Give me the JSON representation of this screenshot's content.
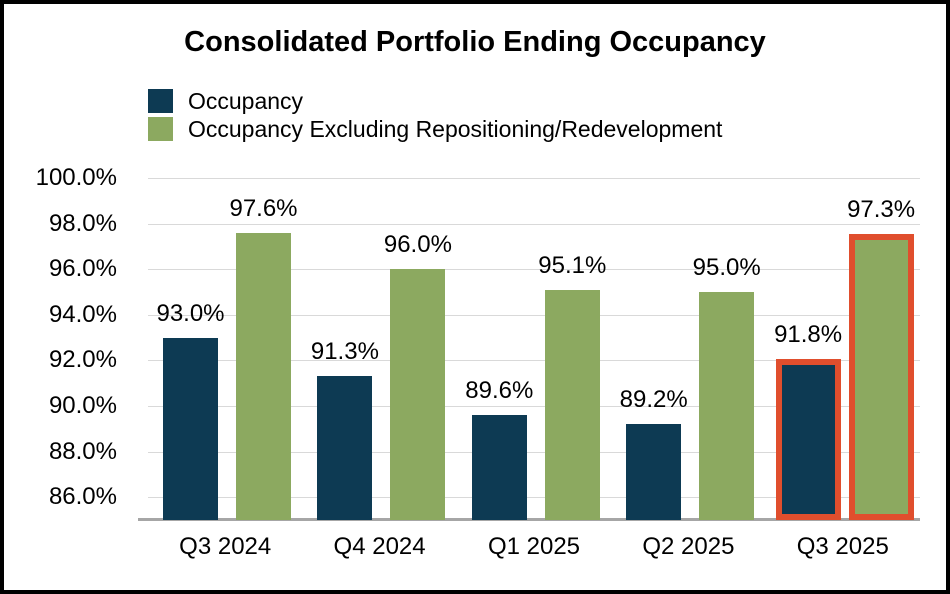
{
  "title": "Consolidated Portfolio Ending Occupancy",
  "legend": {
    "items": [
      {
        "label": "Occupancy",
        "color": "#0d3a53"
      },
      {
        "label": "Occupancy Excluding Repositioning/Redevelopment",
        "color": "#8ca960"
      }
    ]
  },
  "chart_data": {
    "type": "bar",
    "title": "Consolidated Portfolio Ending Occupancy",
    "categories": [
      "Q3 2024",
      "Q4 2024",
      "Q1 2025",
      "Q2 2025",
      "Q3 2025"
    ],
    "series": [
      {
        "name": "Occupancy",
        "color": "#0d3a53",
        "values": [
          93.0,
          91.3,
          89.6,
          89.2,
          91.8
        ],
        "labels": [
          "93.0%",
          "91.3%",
          "89.6%",
          "89.2%",
          "91.8%"
        ]
      },
      {
        "name": "Occupancy Excluding Repositioning/Redevelopment",
        "color": "#8ca960",
        "values": [
          97.6,
          96.0,
          95.1,
          95.0,
          97.3
        ],
        "labels": [
          "97.6%",
          "96.0%",
          "95.1%",
          "95.0%",
          "97.3%"
        ]
      }
    ],
    "y_axis": {
      "min": 85,
      "max": 100,
      "ticks": [
        {
          "value": 100,
          "label": "100.0%"
        },
        {
          "value": 98,
          "label": "98.0%"
        },
        {
          "value": 96,
          "label": "96.0%"
        },
        {
          "value": 94,
          "label": "94.0%"
        },
        {
          "value": 92,
          "label": "92.0%"
        },
        {
          "value": 90,
          "label": "90.0%"
        },
        {
          "value": 88,
          "label": "88.0%"
        },
        {
          "value": 86,
          "label": "86.0%"
        }
      ]
    },
    "highlight": {
      "category": "Q3 2025",
      "color": "#e04e2d",
      "border_px": 6
    },
    "grid": true,
    "legend_position": "top-left",
    "gridline_color": "#d9d9d9",
    "axis_line_color": "#a6a6a6"
  }
}
